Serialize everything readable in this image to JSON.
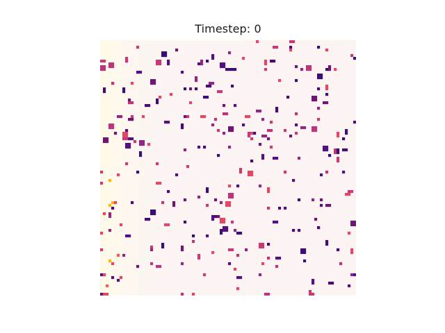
{
  "figure": {
    "title": "Timestep: 0"
  },
  "simulation": {
    "grid_size": 92,
    "colormap": "magma_r",
    "background_color": "#fcf6f3",
    "seed": 1337,
    "active_cells": 260
  }
}
